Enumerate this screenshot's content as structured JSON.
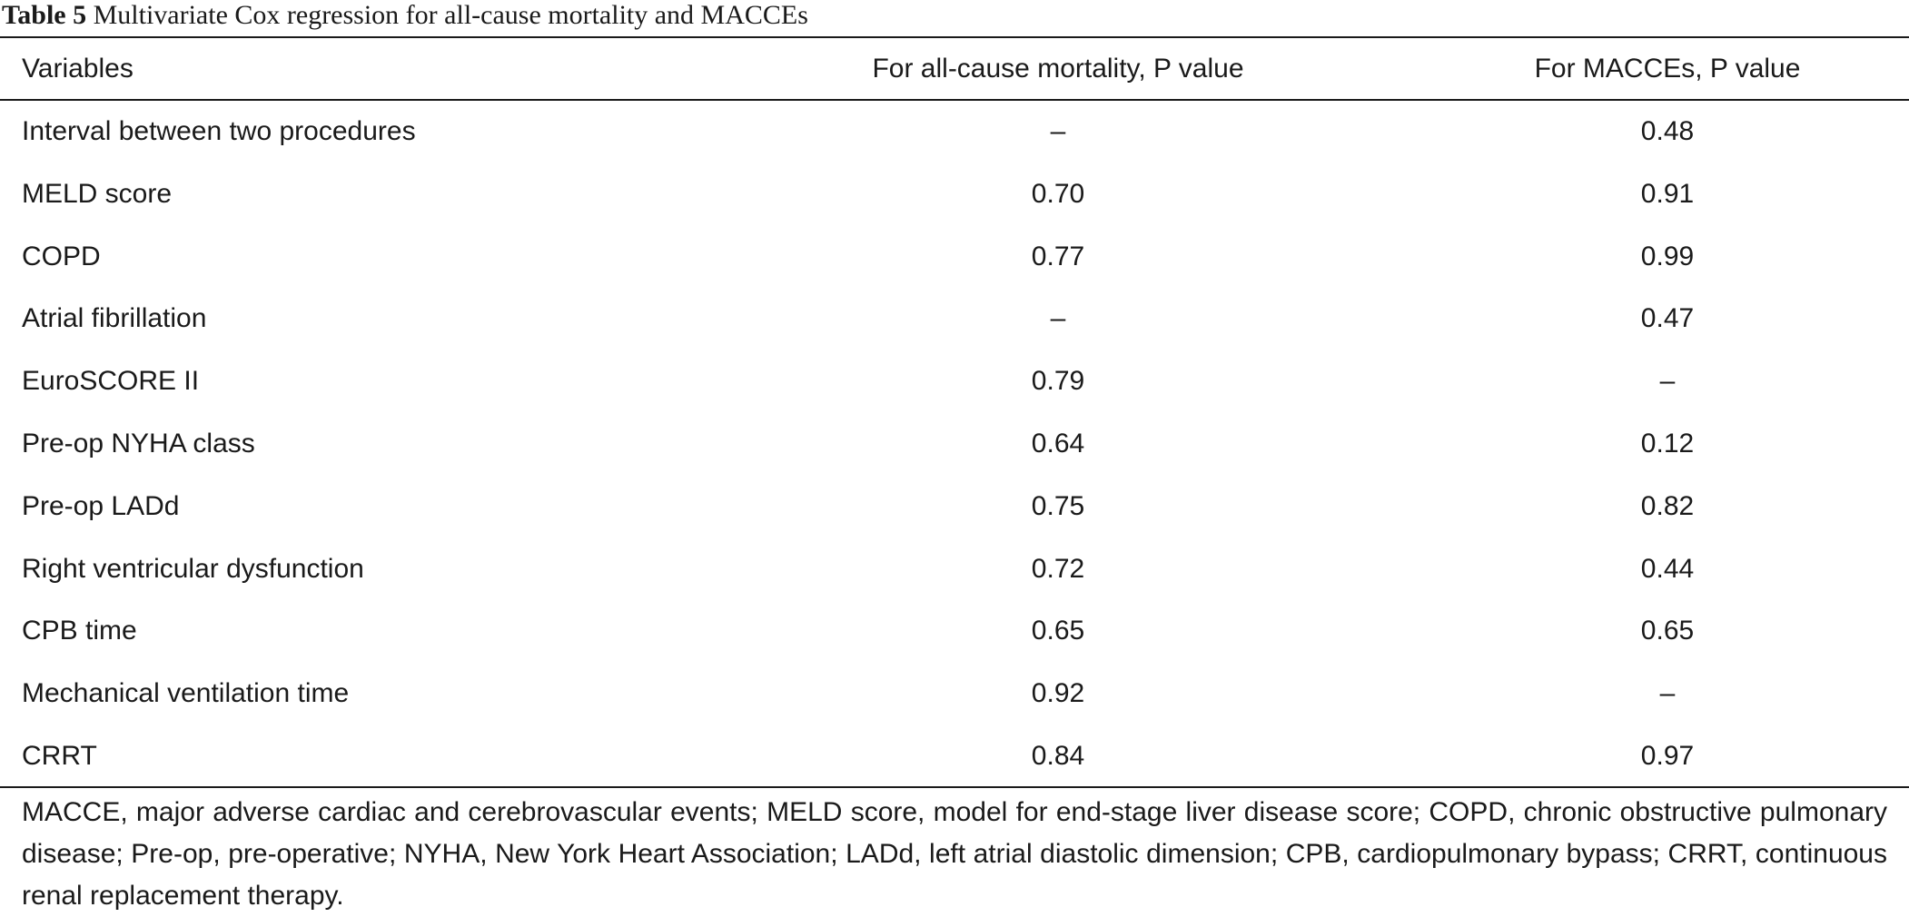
{
  "caption": {
    "label": "Table 5",
    "title": "Multivariate Cox regression for all-cause mortality and MACCEs"
  },
  "table": {
    "headers": [
      "Variables",
      "For all-cause mortality, P value",
      "For MACCEs, P value"
    ],
    "rows": [
      [
        "Interval between two procedures",
        "–",
        "0.48"
      ],
      [
        "MELD score",
        "0.70",
        "0.91"
      ],
      [
        "COPD",
        "0.77",
        "0.99"
      ],
      [
        "Atrial fibrillation",
        "–",
        "0.47"
      ],
      [
        "EuroSCORE II",
        "0.79",
        "–"
      ],
      [
        "Pre-op NYHA class",
        "0.64",
        "0.12"
      ],
      [
        "Pre-op LADd",
        "0.75",
        "0.82"
      ],
      [
        "Right ventricular dysfunction",
        "0.72",
        "0.44"
      ],
      [
        "CPB time",
        "0.65",
        "0.65"
      ],
      [
        "Mechanical ventilation time",
        "0.92",
        "–"
      ],
      [
        "CRRT",
        "0.84",
        "0.97"
      ]
    ]
  },
  "footnote": "MACCE, major adverse cardiac and cerebrovascular events; MELD score, model for end-stage liver disease score; COPD, chronic obstructive pulmonary disease; Pre-op, pre-operative; NYHA, New York Heart Association; LADd, left atrial diastolic dimension; CPB, cardiopulmonary bypass; CRRT, continuous renal replacement therapy."
}
